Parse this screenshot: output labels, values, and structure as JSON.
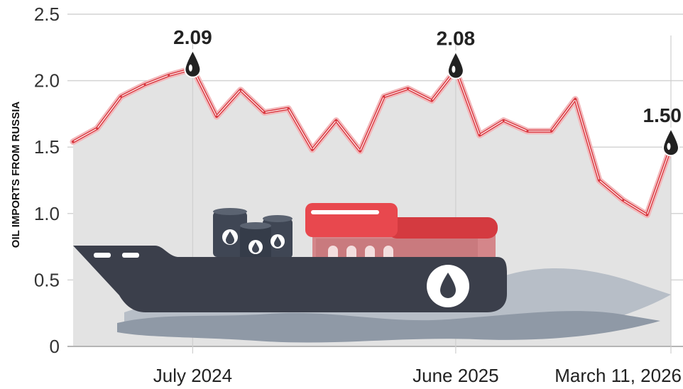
{
  "chart_data": {
    "type": "line",
    "title": "",
    "ylabel": "OIL IMPORTS FROM RUSSIA",
    "xlabel": "",
    "ylim": [
      0,
      2.5
    ],
    "yticks": [
      "0",
      "0.5",
      "1.0",
      "1.5",
      "2.0",
      "2.5"
    ],
    "grid": true,
    "x_tick_labels": [
      "July 2024",
      "June 2025",
      "March 11, 2026"
    ],
    "series": [
      {
        "color": "#d9363e",
        "values": [
          1.54,
          1.64,
          1.88,
          1.97,
          2.04,
          2.09,
          1.73,
          1.93,
          1.76,
          1.79,
          1.48,
          1.7,
          1.47,
          1.88,
          1.94,
          1.85,
          2.08,
          1.59,
          1.7,
          1.62,
          1.62,
          1.86,
          1.25,
          1.1,
          0.99,
          1.5
        ]
      }
    ],
    "annotations": [
      {
        "index": 5,
        "label": "2.09"
      },
      {
        "index": 16,
        "label": "2.08"
      },
      {
        "index": 25,
        "label": "1.50"
      }
    ],
    "x_tick_indices": [
      5,
      16,
      25
    ],
    "illustration": "tanker-ship-icon"
  }
}
